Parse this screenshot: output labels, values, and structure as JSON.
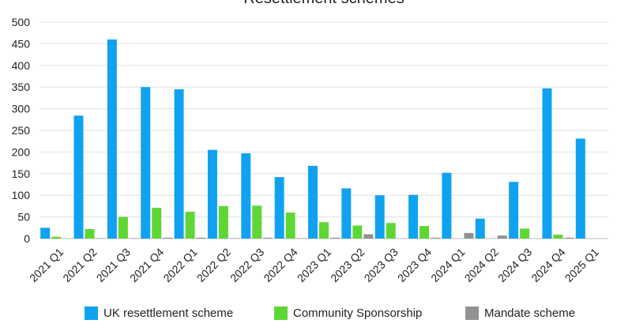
{
  "chart_data": {
    "type": "bar",
    "title": "Resettlement schemes",
    "categories": [
      "2021 Q1",
      "2021 Q2",
      "2021 Q3",
      "2021 Q4",
      "2022 Q1",
      "2022 Q2",
      "2022 Q3",
      "2022 Q4",
      "2023 Q1",
      "2023 Q2",
      "2023 Q3",
      "2023 Q4",
      "2024 Q1",
      "2024 Q2",
      "2024 Q3",
      "2024 Q4",
      "2025 Q1"
    ],
    "series": [
      {
        "name": "UK resettlement scheme",
        "color": "#10a2f0",
        "values": [
          25,
          284,
          460,
          350,
          345,
          205,
          197,
          142,
          168,
          116,
          100,
          101,
          152,
          46,
          131,
          347,
          231
        ]
      },
      {
        "name": "Community Sponsorship",
        "color": "#5ed735",
        "values": [
          4,
          22,
          50,
          71,
          62,
          75,
          76,
          60,
          38,
          30,
          36,
          29,
          0,
          0,
          23,
          9,
          0
        ]
      },
      {
        "name": "Mandate scheme",
        "color": "#929292",
        "values": [
          0,
          1,
          1,
          2,
          2,
          1,
          2,
          1,
          2,
          10,
          0,
          2,
          13,
          7,
          0,
          2,
          0
        ]
      }
    ],
    "ylim": [
      0,
      500
    ],
    "yticks": [
      0,
      50,
      100,
      150,
      200,
      250,
      300,
      350,
      400,
      450,
      500
    ],
    "grid": true,
    "legend_position": "bottom"
  }
}
